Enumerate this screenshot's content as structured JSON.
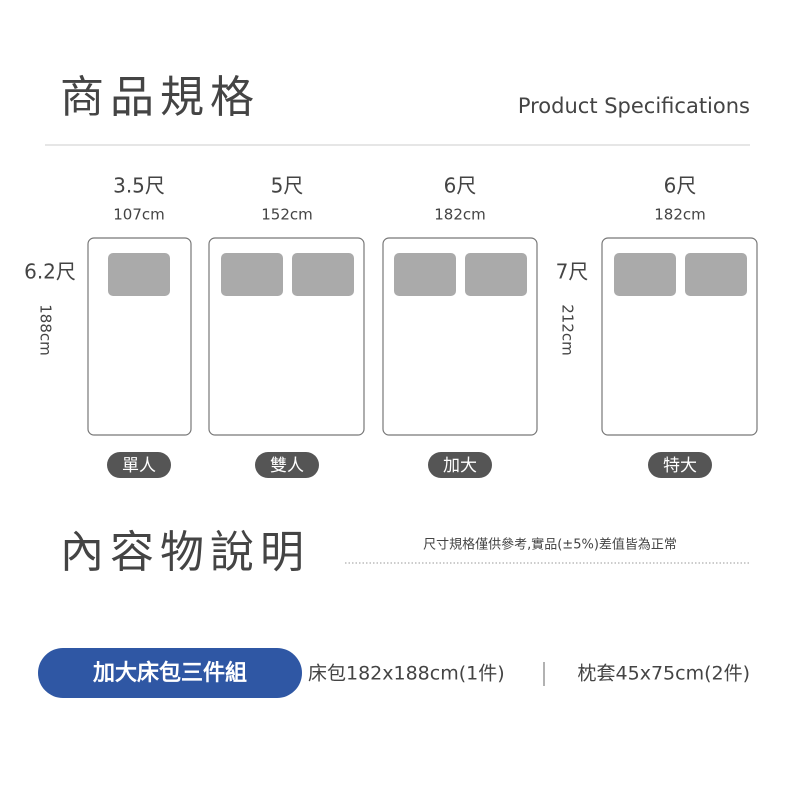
{
  "header": {
    "title": "商品規格",
    "subtitle": "Product Specifications"
  },
  "beds": [
    {
      "width_ft": "3.5尺",
      "width_cm": "107cm",
      "name": "單人"
    },
    {
      "width_ft": "5尺",
      "width_cm": "152cm",
      "name": "雙人"
    },
    {
      "width_ft": "6尺",
      "width_cm": "182cm",
      "name": "加大"
    },
    {
      "width_ft": "6尺",
      "width_cm": "182cm",
      "name": "特大"
    }
  ],
  "lengths": [
    {
      "ft": "6.2尺",
      "cm": "188cm"
    },
    {
      "ft": "7尺",
      "cm": "212cm"
    }
  ],
  "contents": {
    "title": "內容物說明",
    "note": "尺寸規格僅供參考,實品(±5%)差值皆為正常"
  },
  "package": {
    "name": "加大床包三件組",
    "items": [
      "床包182x188cm(1件)",
      "枕套45x75cm(2件)"
    ]
  }
}
